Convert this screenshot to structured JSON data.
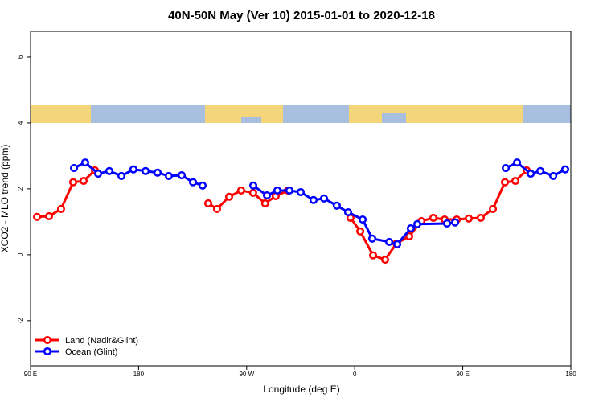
{
  "chart_data": {
    "type": "line",
    "title": "40N-50N May (Ver 10)   2015-01-01 to 2020-12-18",
    "x_label": "Longitude (deg E)",
    "y_label": "XCO2 - MLO trend (ppm)",
    "xlim": [
      90,
      540
    ],
    "ylim": [
      -3.37,
      6.78
    ],
    "xticks": [
      {
        "value": 90,
        "label": "90 E"
      },
      {
        "value": 180,
        "label": "180"
      },
      {
        "value": 270,
        "label": "90 W"
      },
      {
        "value": 360,
        "label": "0"
      },
      {
        "value": 450,
        "label": "90 E"
      },
      {
        "value": 540,
        "label": "180"
      }
    ],
    "yticks": [
      -2,
      0,
      2,
      4,
      6
    ],
    "legend": "bottom-left",
    "series": [
      {
        "name": "Land (Nadir&Glint)",
        "color": "#ff0000",
        "x": [
          95.4,
          105.4,
          115.4,
          125.5,
          134.2,
          143.6,
          null,
          238.0,
          245.3,
          255.4,
          265.4,
          275.4,
          285.4,
          294.2,
          304.3,
          null,
          356.5,
          364.6,
          375.3,
          385.3,
          394.7,
          405.4,
          415.5,
          425.5,
          434.9,
          445.0,
          455.0,
          465.0,
          475.1,
          485.1,
          493.8,
          503.2
        ],
        "values": [
          1.15,
          1.17,
          1.39,
          2.2,
          2.24,
          2.56,
          null,
          1.56,
          1.39,
          1.76,
          1.95,
          1.88,
          1.56,
          1.78,
          1.95,
          null,
          1.12,
          0.71,
          -0.02,
          -0.15,
          0.34,
          0.56,
          1.02,
          1.12,
          1.07,
          1.07,
          1.1,
          1.12,
          1.39,
          2.2,
          2.24,
          2.56
        ]
      },
      {
        "name": "Ocean (Glint)",
        "color": "#0000ff",
        "x": [
          126.2,
          135.5,
          146.3,
          155.6,
          165.7,
          175.7,
          185.8,
          195.8,
          205.2,
          215.9,
          225.3,
          233.3,
          null,
          275.5,
          286.9,
          295.6,
          305.6,
          315.0,
          325.7,
          334.4,
          345.1,
          354.5,
          366.6,
          374.6,
          388.7,
          395.4,
          406.7,
          412.1,
          436.9,
          443.6,
          null,
          485.8,
          495.2,
          506.6,
          514.6,
          525.3,
          535.3
        ],
        "values": [
          2.63,
          2.8,
          2.46,
          2.54,
          2.39,
          2.59,
          2.54,
          2.49,
          2.39,
          2.41,
          2.2,
          2.1,
          null,
          2.1,
          1.8,
          1.95,
          1.95,
          1.9,
          1.66,
          1.71,
          1.49,
          1.29,
          1.07,
          0.49,
          0.39,
          0.32,
          0.8,
          0.93,
          0.95,
          0.98,
          null,
          2.63,
          2.8,
          2.46,
          2.54,
          2.39,
          2.59
        ]
      }
    ]
  }
}
